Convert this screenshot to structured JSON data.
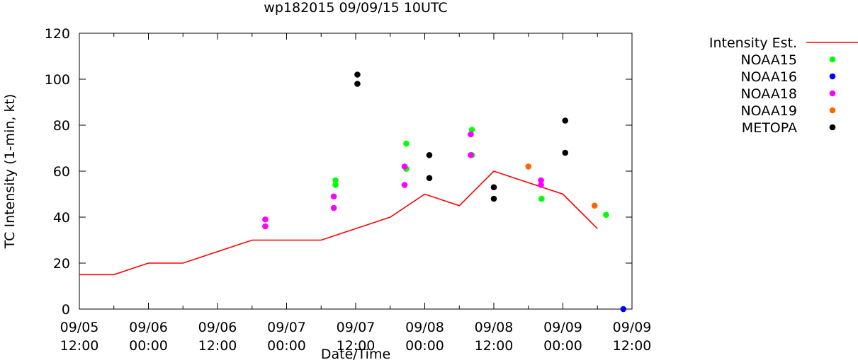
{
  "chart_data": {
    "type": "line",
    "title": "wp182015 09/09/15 10UTC",
    "xlabel": "Date/Time",
    "ylabel": "TC Intensity (1-min, kt)",
    "ylim": [
      0,
      120
    ],
    "xlim_hours": [
      0,
      96
    ],
    "yticks": [
      "0",
      "20",
      "40",
      "60",
      "80",
      "100",
      "120"
    ],
    "xticks": [
      {
        "hour": 0,
        "date": "09/05",
        "time": "12:00"
      },
      {
        "hour": 12,
        "date": "09/06",
        "time": "00:00"
      },
      {
        "hour": 24,
        "date": "09/06",
        "time": "12:00"
      },
      {
        "hour": 36,
        "date": "09/07",
        "time": "00:00"
      },
      {
        "hour": 48,
        "date": "09/07",
        "time": "12:00"
      },
      {
        "hour": 60,
        "date": "09/08",
        "time": "00:00"
      },
      {
        "hour": 72,
        "date": "09/08",
        "time": "12:00"
      },
      {
        "hour": 84,
        "date": "09/09",
        "time": "00:00"
      },
      {
        "hour": 96,
        "date": "09/09",
        "time": "12:00"
      }
    ],
    "grid": false,
    "legend_position": "outside-right",
    "series": [
      {
        "name": "Intensity Est.",
        "kind": "line",
        "color": "#ff0000",
        "points": [
          [
            0,
            15
          ],
          [
            6,
            15
          ],
          [
            12,
            20
          ],
          [
            18,
            20
          ],
          [
            24,
            25
          ],
          [
            30,
            30
          ],
          [
            36,
            30
          ],
          [
            42,
            30
          ],
          [
            48,
            35
          ],
          [
            54,
            40
          ],
          [
            60,
            50
          ],
          [
            66,
            45
          ],
          [
            72,
            60
          ],
          [
            78,
            55
          ],
          [
            84,
            50
          ],
          [
            90,
            35
          ]
        ]
      },
      {
        "name": "NOAA15",
        "kind": "points",
        "color": "#00ff00",
        "points": [
          [
            44.5,
            56
          ],
          [
            44.5,
            54
          ],
          [
            56.8,
            72
          ],
          [
            56.8,
            61
          ],
          [
            68.2,
            78
          ],
          [
            68.2,
            67
          ],
          [
            80.3,
            48
          ],
          [
            91.5,
            41
          ]
        ]
      },
      {
        "name": "NOAA16",
        "kind": "points",
        "color": "#0000ff",
        "points": [
          [
            94.5,
            0
          ]
        ]
      },
      {
        "name": "NOAA18",
        "kind": "points",
        "color": "#ff00ff",
        "points": [
          [
            32.3,
            39
          ],
          [
            32.3,
            36
          ],
          [
            44.2,
            49
          ],
          [
            44.2,
            44
          ],
          [
            56.5,
            62
          ],
          [
            56.5,
            54
          ],
          [
            68,
            76
          ],
          [
            68,
            67
          ],
          [
            80.2,
            56
          ],
          [
            80.2,
            54
          ]
        ]
      },
      {
        "name": "NOAA19",
        "kind": "points",
        "color": "#ff6600",
        "points": [
          [
            78,
            62
          ],
          [
            89.5,
            45
          ]
        ]
      },
      {
        "name": "METOPA",
        "kind": "points",
        "color": "#000000",
        "points": [
          [
            48.3,
            102
          ],
          [
            48.3,
            98
          ],
          [
            60.8,
            67
          ],
          [
            60.8,
            57
          ],
          [
            72,
            53
          ],
          [
            72,
            48
          ],
          [
            84.4,
            82
          ],
          [
            84.4,
            68
          ]
        ]
      }
    ]
  }
}
